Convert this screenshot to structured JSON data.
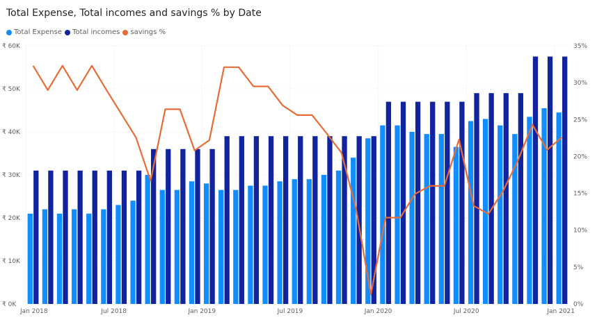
{
  "chart_data": {
    "type": "bar",
    "title": "Total Expense, Total incomes and savings % by Date",
    "legend_position": "top-left",
    "grid": true,
    "x_tick_labels": [
      "Jan 2018",
      "Jul 2018",
      "Jan 2019",
      "Jul 2019",
      "Jan 2020",
      "Jul 2020",
      "Jan 2021"
    ],
    "x_tick_indices": [
      0,
      6,
      12,
      18,
      24,
      30,
      36
    ],
    "y_left": {
      "ticks": [
        "₹ 0K",
        "₹ 10K",
        "₹ 20K",
        "₹ 30K",
        "₹ 40K",
        "₹ 50K",
        "₹ 60K"
      ],
      "ylim": [
        0,
        60000
      ]
    },
    "y_right": {
      "ticks": [
        "0%",
        "5%",
        "10%",
        "15%",
        "20%",
        "25%",
        "30%",
        "35%"
      ],
      "ylim": [
        0,
        35
      ]
    },
    "categories": [
      "2018-01",
      "2018-02",
      "2018-03",
      "2018-04",
      "2018-05",
      "2018-06",
      "2018-07",
      "2018-08",
      "2018-09",
      "2018-10",
      "2018-11",
      "2018-12",
      "2019-01",
      "2019-02",
      "2019-03",
      "2019-04",
      "2019-05",
      "2019-06",
      "2019-07",
      "2019-08",
      "2019-09",
      "2019-10",
      "2019-11",
      "2019-12",
      "2020-01",
      "2020-02",
      "2020-03",
      "2020-04",
      "2020-05",
      "2020-06",
      "2020-07",
      "2020-08",
      "2020-09",
      "2020-10",
      "2020-11",
      "2020-12",
      "2021-01"
    ],
    "series": [
      {
        "name": "Total Expense",
        "type": "bar",
        "color": "#118DFF",
        "values": [
          21000,
          22000,
          21000,
          22000,
          21000,
          22000,
          23000,
          24000,
          30000,
          26500,
          26500,
          28500,
          28000,
          26500,
          26500,
          27500,
          27500,
          28500,
          29000,
          29000,
          30000,
          31000,
          34000,
          38500,
          41500,
          41500,
          40000,
          39500,
          39500,
          36500,
          42500,
          43000,
          41500,
          39500,
          43500,
          45500,
          44500
        ]
      },
      {
        "name": "Total incomes",
        "type": "bar",
        "color": "#12239E",
        "values": [
          31000,
          31000,
          31000,
          31000,
          31000,
          31000,
          31000,
          31000,
          36000,
          36000,
          36000,
          36000,
          36000,
          39000,
          39000,
          39000,
          39000,
          39000,
          39000,
          39000,
          39000,
          39000,
          39000,
          39000,
          47000,
          47000,
          47000,
          47000,
          47000,
          47000,
          49000,
          49000,
          49000,
          49000,
          57500,
          57500,
          57500
        ]
      },
      {
        "name": "savings %",
        "type": "line",
        "color": "#E66C37",
        "axis": "right",
        "values": [
          32.3,
          29.0,
          32.3,
          29.0,
          32.3,
          29.0,
          25.8,
          22.6,
          16.7,
          26.4,
          26.4,
          20.8,
          22.2,
          32.1,
          32.1,
          29.5,
          29.5,
          26.9,
          25.6,
          25.6,
          23.1,
          20.5,
          12.8,
          1.3,
          11.7,
          11.7,
          14.9,
          16.0,
          16.0,
          22.3,
          13.3,
          12.2,
          15.3,
          19.4,
          24.3,
          20.9,
          22.6
        ]
      }
    ]
  }
}
